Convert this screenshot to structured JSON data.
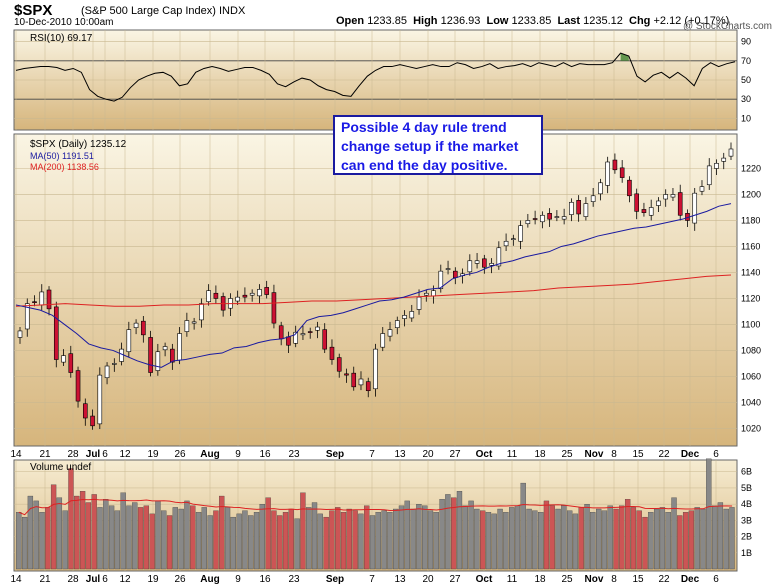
{
  "header": {
    "symbol": "$SPX",
    "description": "(S&P 500 Large Cap Index) INDX",
    "datetime": "10-Dec-2010 10:00am",
    "open_label": "Open",
    "open": "1233.85",
    "high_label": "High",
    "high": "1236.93",
    "low_label": "Low",
    "low": "1233.85",
    "last_label": "Last",
    "last": "1235.12",
    "chg_label": "Chg",
    "chg": "+2.12 (+0.17%)",
    "watermark": "@ StockCharts.com"
  },
  "annotation": {
    "lines": [
      "Possible 4 day rule trend",
      "change setup if the market",
      "can end the day positive."
    ]
  },
  "colors": {
    "up": "#ffffff",
    "down": "#cc1133",
    "ma50": "#1a1aa0",
    "ma200": "#dd2222",
    "rsi_fill": "#4a8a3a",
    "vol_up": "#888888",
    "vol_down": "#cc5555",
    "bg_top": "#f8f2de",
    "bg_bottom": "#d8b880"
  },
  "chart_data": [
    {
      "type": "line",
      "panel": "RSI",
      "title": "RSI(10) 69.17",
      "yticks": [
        10,
        30,
        50,
        70,
        90
      ],
      "ylim": [
        0,
        100
      ],
      "reference_lines": [
        30,
        70
      ],
      "values": [
        60,
        62,
        63,
        64,
        64,
        63,
        60,
        62,
        58,
        40,
        33,
        30,
        28,
        32,
        42,
        50,
        54,
        57,
        58,
        54,
        44,
        46,
        58,
        62,
        64,
        62,
        59,
        61,
        63,
        63,
        60,
        56,
        46,
        43,
        48,
        52,
        50,
        44,
        40,
        38,
        34,
        33,
        44,
        54,
        60,
        64,
        64,
        66,
        64,
        62,
        64,
        66,
        64,
        64,
        68,
        66,
        62,
        64,
        67,
        62,
        64,
        65,
        67,
        64,
        68,
        66,
        64,
        68,
        64,
        67,
        66,
        66,
        66,
        68,
        78,
        75,
        54,
        48,
        55,
        58,
        52,
        58,
        52,
        44,
        62,
        68,
        64,
        67,
        69
      ]
    },
    {
      "type": "line",
      "panel": "Price",
      "title": "$SPX (Daily) 1235.12",
      "legend": [
        "MA(50) 1191.51",
        "MA(200) 1138.56"
      ],
      "yticks": [
        1020,
        1040,
        1060,
        1080,
        1100,
        1120,
        1140,
        1160,
        1180,
        1200,
        1220
      ],
      "ylim": [
        1008,
        1245
      ],
      "xtick_labels": [
        "14",
        "21",
        "28",
        "Jul",
        "6",
        "12",
        "19",
        "26",
        "Aug",
        "9",
        "16",
        "23",
        "Sep",
        "7",
        "13",
        "20",
        "27",
        "Oct",
        "11",
        "18",
        "25",
        "Nov",
        "8",
        "15",
        "22",
        "Dec",
        "6"
      ],
      "close": [
        1095,
        1116,
        1117,
        1125,
        1112,
        1073,
        1076,
        1063,
        1041,
        1028,
        1022,
        1061,
        1068,
        1070,
        1081,
        1096,
        1101,
        1092,
        1063,
        1079,
        1083,
        1071,
        1093,
        1103,
        1102,
        1116,
        1126,
        1120,
        1111,
        1120,
        1121,
        1121,
        1124,
        1127,
        1123,
        1101,
        1089,
        1084,
        1094,
        1093,
        1094,
        1098,
        1081,
        1073,
        1064,
        1061,
        1052,
        1058,
        1049,
        1081,
        1093,
        1096,
        1103,
        1107,
        1110,
        1121,
        1124,
        1126,
        1141,
        1143,
        1136,
        1139,
        1149,
        1149,
        1144,
        1147,
        1159,
        1164,
        1166,
        1176,
        1180,
        1181,
        1184,
        1181,
        1183,
        1183,
        1194,
        1185,
        1193,
        1199,
        1209,
        1225,
        1219,
        1213,
        1199,
        1187,
        1186,
        1190,
        1195,
        1200,
        1200,
        1184,
        1180,
        1201,
        1206,
        1222,
        1224,
        1228,
        1235
      ],
      "ma50": [
        1115,
        1113,
        1111,
        1107,
        1100,
        1093,
        1085,
        1082,
        1080,
        1076,
        1072,
        1069,
        1067,
        1072,
        1073,
        1075,
        1077,
        1078,
        1082,
        1083,
        1086,
        1088,
        1089,
        1092,
        1103,
        1106,
        1107,
        1109,
        1112,
        1115,
        1118,
        1119,
        1121,
        1124,
        1127,
        1128,
        1135,
        1138,
        1140,
        1144,
        1147,
        1149,
        1152,
        1154,
        1156,
        1160,
        1162,
        1165,
        1168,
        1170,
        1172,
        1174,
        1175,
        1177,
        1179,
        1181,
        1184,
        1187,
        1191,
        1193
      ],
      "ma200": [
        1114,
        1115,
        1116,
        1115,
        1114,
        1114,
        1115,
        1115,
        1116,
        1116,
        1116,
        1117,
        1118,
        1118,
        1119,
        1120,
        1121,
        1122,
        1123,
        1124,
        1125,
        1126,
        1128,
        1129,
        1130,
        1131,
        1133,
        1135,
        1137,
        1138
      ]
    },
    {
      "type": "bar",
      "panel": "Volume",
      "title": "Volume undef",
      "ytick_labels": [
        "1B",
        "2B",
        "3B",
        "4B",
        "5B",
        "6B"
      ],
      "ylim": [
        0,
        6.6
      ],
      "values": [
        3.5,
        3.2,
        4.5,
        4.2,
        3.5,
        3.8,
        5.2,
        4.4,
        3.6,
        6.2,
        4.5,
        4.8,
        4.1,
        4.6,
        3.8,
        4.3,
        3.9,
        3.6,
        4.7,
        3.9,
        4.1,
        3.8,
        3.9,
        3.4,
        4.2,
        3.6,
        3.3,
        3.8,
        3.7,
        4.2,
        3.9,
        3.5,
        3.8,
        3.3,
        3.6,
        4.5,
        3.8,
        3.2,
        3.4,
        3.6,
        3.3,
        3.5,
        4.0,
        4.4,
        3.6,
        3.3,
        3.5,
        3.7,
        3.1,
        4.7,
        3.8,
        4.1,
        3.4,
        3.2,
        3.6,
        3.8,
        3.5,
        3.7,
        3.6,
        3.4,
        3.9,
        3.3,
        3.5,
        3.6,
        3.5,
        3.7,
        3.9,
        4.2,
        3.7,
        4.0,
        3.9,
        3.6,
        3.5,
        4.3,
        4.6,
        4.4,
        4.8,
        3.9,
        4.2,
        3.7,
        3.6,
        3.5,
        3.4,
        3.7,
        3.5,
        3.8,
        3.9,
        5.3,
        3.7,
        3.6,
        3.5,
        4.2,
        3.9,
        3.7,
        3.9,
        3.6,
        3.4,
        3.8,
        4.0,
        3.5,
        3.7,
        3.6,
        3.9,
        3.7,
        3.9,
        4.3,
        3.8,
        3.6,
        3.2,
        3.5,
        3.7,
        3.8,
        3.5,
        4.4,
        3.3,
        3.5,
        3.6,
        3.8,
        3.7,
        6.8,
        3.9,
        4.1,
        3.7,
        3.8
      ]
    }
  ]
}
